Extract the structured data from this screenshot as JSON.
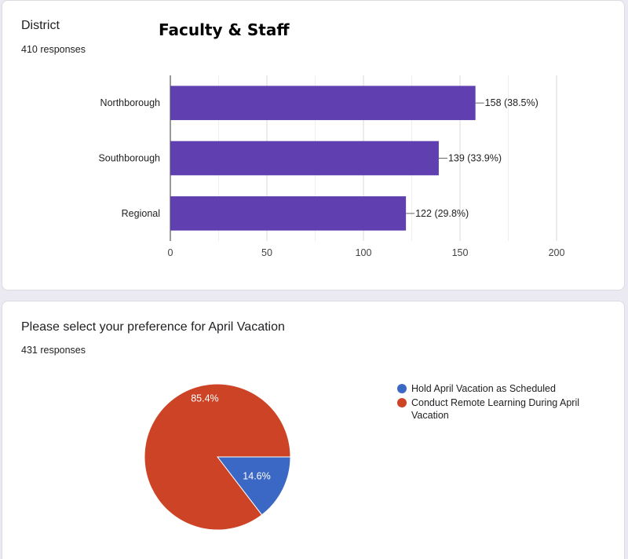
{
  "header": {
    "title": "Faculty & Staff"
  },
  "card1": {
    "title": "District",
    "responses": "410 responses"
  },
  "card2": {
    "title": "Please select your preference for April Vacation",
    "responses": "431 responses"
  },
  "colors": {
    "bar": "#6040b0",
    "pie_scheduled": "#3b68c4",
    "pie_remote": "#cc4425"
  },
  "chart_data": [
    {
      "type": "bar",
      "orientation": "horizontal",
      "title": "District",
      "categories": [
        "Northborough",
        "Southborough",
        "Regional"
      ],
      "values": [
        158,
        139,
        122
      ],
      "data_labels": [
        "158 (38.5%)",
        "139 (33.9%)",
        "122 (29.8%)"
      ],
      "xlim": [
        0,
        200
      ],
      "xticks": [
        0,
        50,
        100,
        150,
        200
      ],
      "grid": true
    },
    {
      "type": "pie",
      "title": "Please select your preference for April Vacation",
      "labels": [
        "Hold April Vacation as Scheduled",
        "Conduct Remote Learning During April Vacation"
      ],
      "values": [
        14.6,
        85.4
      ],
      "slice_labels": [
        "14.6%",
        "85.4%"
      ],
      "legend": "right"
    }
  ]
}
